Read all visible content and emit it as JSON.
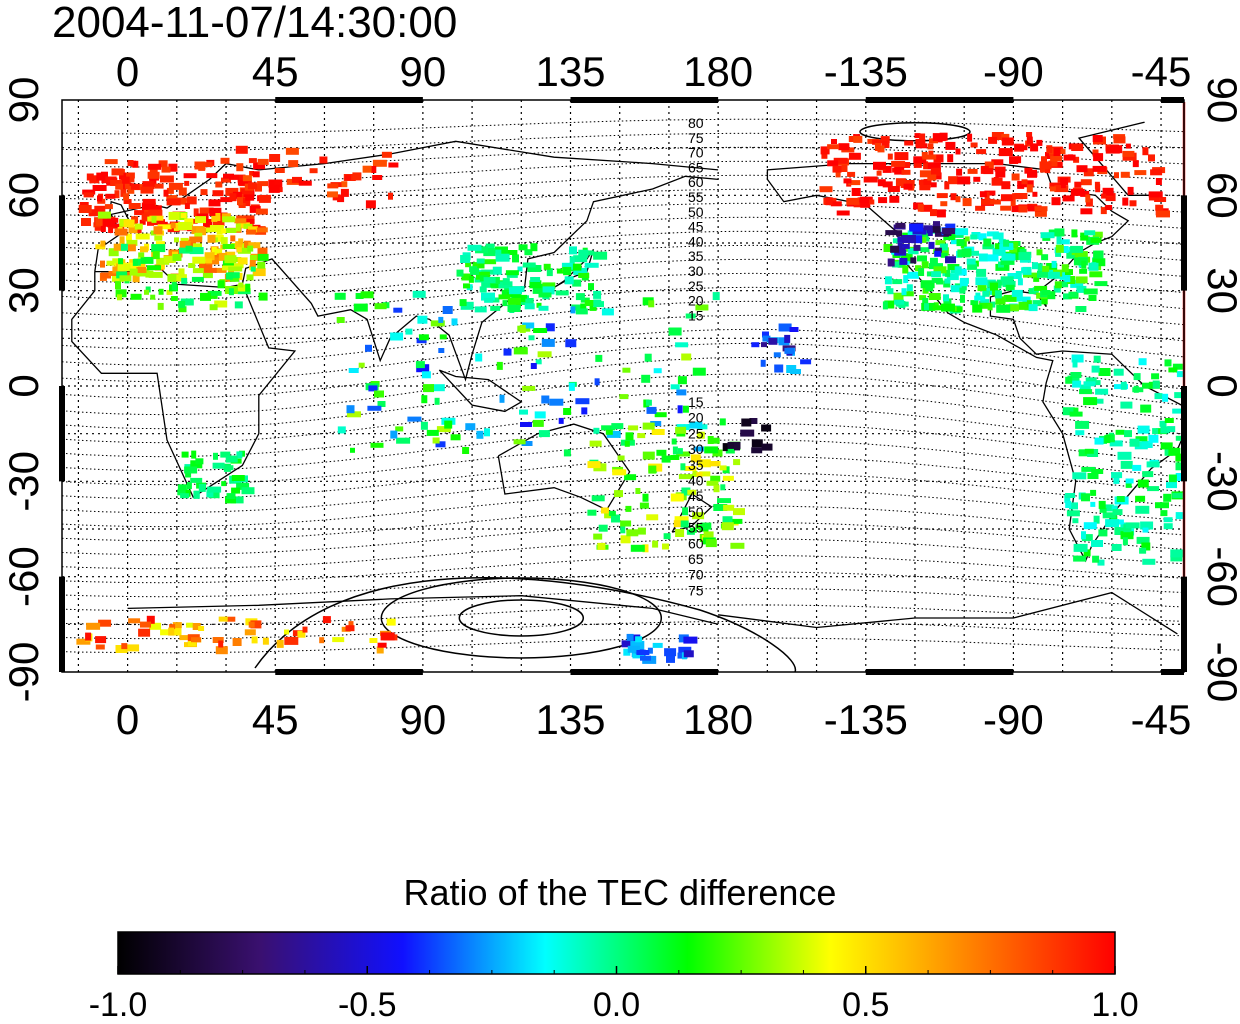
{
  "title": "2004-11-07/14:30:00",
  "map": {
    "lon_ticks": [
      {
        "value": 0,
        "label": "0"
      },
      {
        "value": 45,
        "label": "45"
      },
      {
        "value": 90,
        "label": "90"
      },
      {
        "value": 135,
        "label": "135"
      },
      {
        "value": 180,
        "label": "180"
      },
      {
        "value": -135,
        "label": "-135"
      },
      {
        "value": -90,
        "label": "-90"
      },
      {
        "value": -45,
        "label": "-45"
      }
    ],
    "lat_ticks": [
      {
        "value": 90,
        "label": "90"
      },
      {
        "value": 60,
        "label": "60"
      },
      {
        "value": 30,
        "label": "30"
      },
      {
        "value": 0,
        "label": "0"
      },
      {
        "value": -30,
        "label": "-30"
      },
      {
        "value": -60,
        "label": "-60"
      },
      {
        "value": -90,
        "label": "-90"
      }
    ],
    "contour_labels_north": [
      "80",
      "75",
      "70",
      "65",
      "60",
      "55",
      "50",
      "45",
      "40",
      "35",
      "30",
      "25",
      "20",
      "15"
    ],
    "contour_labels_south": [
      "15",
      "20",
      "25",
      "30",
      "35",
      "40",
      "45",
      "50",
      "55",
      "60",
      "65",
      "70",
      "75"
    ],
    "terminator_lon": -38,
    "colors": {
      "terminator": "#e02020",
      "coast": "#000000"
    }
  },
  "colorbar": {
    "title": "Ratio of the TEC difference",
    "ticks": [
      "-1.0",
      "-0.5",
      "0.0",
      "0.5",
      "1.0"
    ],
    "range": [
      -1.0,
      1.0
    ],
    "stops": [
      "#000000",
      "#3a1070",
      "#1010ff",
      "#00ffff",
      "#00ff00",
      "#ffff00",
      "#ff8000",
      "#ff0000"
    ]
  }
}
